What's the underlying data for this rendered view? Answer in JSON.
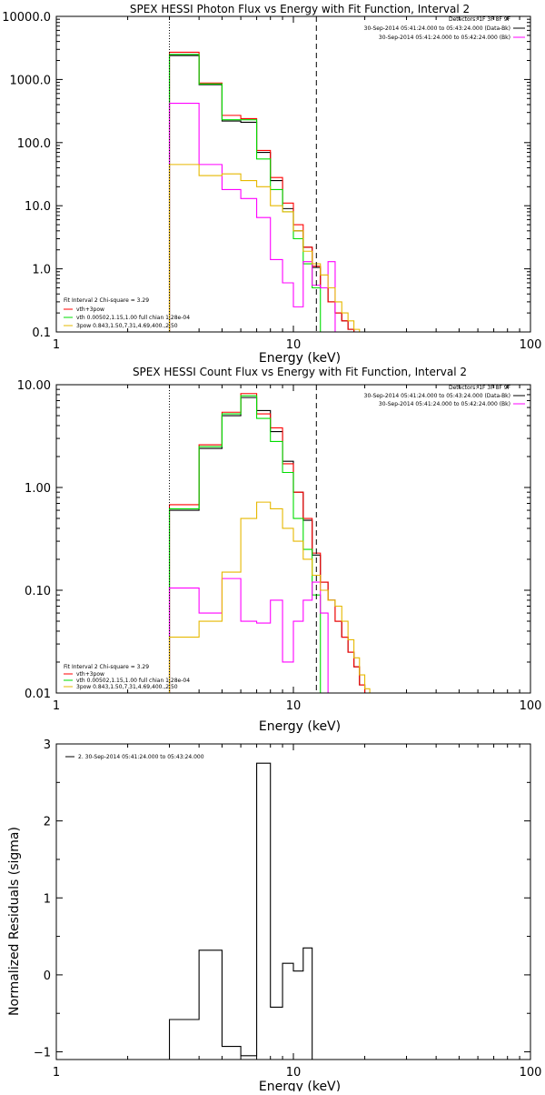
{
  "chart_data": [
    {
      "type": "line",
      "title": "SPEX HESSI Photon Flux vs Energy with Fit Function, Interval 2",
      "xlabel": "Energy (keV)",
      "ylabel": "",
      "xscale": "log",
      "yscale": "log",
      "xlim": [
        1,
        100
      ],
      "ylim": [
        0.1,
        10000
      ],
      "xticks": [
        1,
        10,
        100
      ],
      "xtick_labels": [
        "1",
        "10",
        "100"
      ],
      "yticks": [
        0.1,
        1,
        10,
        100,
        1000,
        10000
      ],
      "ytick_labels": [
        "0.1",
        "1.0",
        "10.0",
        "100.0",
        "1000.0",
        "10000.0"
      ],
      "edges": [
        3,
        4,
        5,
        6,
        7,
        8,
        9,
        10,
        11,
        12,
        13,
        14,
        15,
        16,
        17,
        18,
        19,
        20,
        21
      ],
      "vlines": [
        {
          "x": 3,
          "style": "dotted"
        },
        {
          "x": 12.5,
          "style": "dashed"
        }
      ],
      "legend_top": {
        "line1": "Detectors: 1F 3F 8F 9F",
        "line2": "30-Sep-2014 05:41:24.000 to 05:43:24.000 (Data-Bk)",
        "line3": "30-Sep-2014 05:41:24.000 to 05:42:24.000 (Bk)",
        "placement": "top-right"
      },
      "legend_bottom": {
        "header": "Fit Interval 2   Chi-square = 3.29",
        "entries": [
          "vth+3pow",
          "vth 0.00502,1.15,1.00  full chian 1.28e-04",
          "3pow 0.843,1.50,7.31,4.69,400.,2.50"
        ],
        "placement": "bottom-left"
      },
      "series": [
        {
          "color": "#000000",
          "values": [
            2400,
            830,
            220,
            210,
            70,
            25,
            9,
            4,
            2.2,
            1.05,
            0.5,
            0.3,
            0.2,
            0.15,
            0.11
          ]
        },
        {
          "color": "#ff0000",
          "values": [
            2700,
            880,
            270,
            240,
            75,
            28,
            11,
            5,
            2.2,
            1.1,
            0.5,
            0.3,
            0.2,
            0.15,
            0.11
          ]
        },
        {
          "color": "#00dd00",
          "values": [
            2500,
            850,
            230,
            230,
            55,
            18,
            8,
            3,
            1.2,
            0.5,
            0.1
          ]
        },
        {
          "color": "#ff00ff",
          "values": [
            420,
            45,
            18,
            13,
            6.5,
            1.4,
            0.6,
            0.25,
            1.3,
            0.55,
            0.5,
            1.3,
            0.1
          ]
        },
        {
          "color": "#e6b800",
          "values": [
            45,
            30,
            32,
            25,
            20,
            10,
            8,
            4,
            1.9,
            1.2,
            0.8,
            0.5,
            0.3,
            0.2,
            0.15,
            0.11,
            0.08
          ]
        }
      ]
    },
    {
      "type": "line",
      "title": "SPEX HESSI Count Flux vs Energy with Fit Function, Interval 2",
      "xlabel": "Energy (keV)",
      "ylabel": "",
      "xscale": "log",
      "yscale": "log",
      "xlim": [
        1,
        100
      ],
      "ylim": [
        0.01,
        10
      ],
      "xticks": [
        1,
        10,
        100
      ],
      "xtick_labels": [
        "1",
        "10",
        "100"
      ],
      "yticks": [
        0.01,
        0.1,
        1,
        10
      ],
      "ytick_labels": [
        "0.01",
        "0.10",
        "1.00",
        "10.00"
      ],
      "edges": [
        3,
        4,
        5,
        6,
        7,
        8,
        9,
        10,
        11,
        12,
        13,
        14,
        15,
        16,
        17,
        18,
        19,
        20,
        21,
        22
      ],
      "vlines": [
        {
          "x": 3,
          "style": "dotted"
        },
        {
          "x": 12.5,
          "style": "dashed"
        }
      ],
      "legend_top": {
        "line1": "Detectors: 1F 3F 8F 9F",
        "line2": "30-Sep-2014 05:41:24.000 to 05:43:24.000 (Data-Bk)",
        "line3": "30-Sep-2014 05:41:24.000 to 05:42:24.000 (Bk)",
        "placement": "top-right"
      },
      "legend_bottom": {
        "header": "Fit Interval 2   Chi-square = 3.29",
        "entries": [
          "vth+3pow",
          "vth 0.00502,1.15,1.00  full chian 1.28e-04",
          "3pow 0.843,1.50,7.31,4.69,400.,2.50"
        ],
        "placement": "bottom-left"
      },
      "series": [
        {
          "color": "#000000",
          "values": [
            0.6,
            2.4,
            5.0,
            7.5,
            5.6,
            3.5,
            1.8,
            0.9,
            0.48,
            0.22,
            0.12,
            0.08,
            0.05,
            0.035,
            0.025,
            0.018,
            0.012
          ]
        },
        {
          "color": "#ff0000",
          "values": [
            0.68,
            2.6,
            5.4,
            8.2,
            5.2,
            3.8,
            1.7,
            0.9,
            0.5,
            0.23,
            0.12,
            0.08,
            0.05,
            0.035,
            0.025,
            0.018,
            0.012
          ]
        },
        {
          "color": "#00dd00",
          "values": [
            0.62,
            2.5,
            5.2,
            7.8,
            4.7,
            2.8,
            1.4,
            0.5,
            0.25,
            0.09,
            0.005
          ]
        },
        {
          "color": "#ff00ff",
          "values": [
            0.105,
            0.06,
            0.13,
            0.05,
            0.048,
            0.08,
            0.02,
            0.05,
            0.08,
            0.12,
            0.06,
            0.004
          ]
        },
        {
          "color": "#e6b800",
          "values": [
            0.035,
            0.05,
            0.15,
            0.5,
            0.72,
            0.62,
            0.4,
            0.3,
            0.2,
            0.14,
            0.1,
            0.08,
            0.07,
            0.05,
            0.033,
            0.022,
            0.015,
            0.011,
            0.008
          ]
        }
      ]
    },
    {
      "type": "line",
      "title": "",
      "xlabel": "Energy (keV)",
      "ylabel": "Normalized Residuals (sigma)",
      "xscale": "log",
      "yscale": "linear",
      "xlim": [
        1,
        100
      ],
      "ylim": [
        -1.1,
        3
      ],
      "xticks": [
        1,
        10,
        100
      ],
      "xtick_labels": [
        "1",
        "10",
        "100"
      ],
      "yticks": [
        -1,
        0,
        1,
        2,
        3
      ],
      "ytick_labels": [
        "−1",
        "0",
        "1",
        "2",
        "3"
      ],
      "edges": [
        3,
        4,
        5,
        6,
        7,
        8,
        9,
        10,
        11,
        12
      ],
      "legend": {
        "entries": [
          "2. 30-Sep-2014 05:41:24.000 to 05:43:24.000"
        ],
        "placement": "top-left"
      },
      "series": [
        {
          "color": "#000000",
          "values": [
            -0.58,
            0.32,
            -0.93,
            -1.05,
            2.75,
            -0.42,
            0.15,
            0.05,
            0.35
          ]
        }
      ]
    }
  ]
}
